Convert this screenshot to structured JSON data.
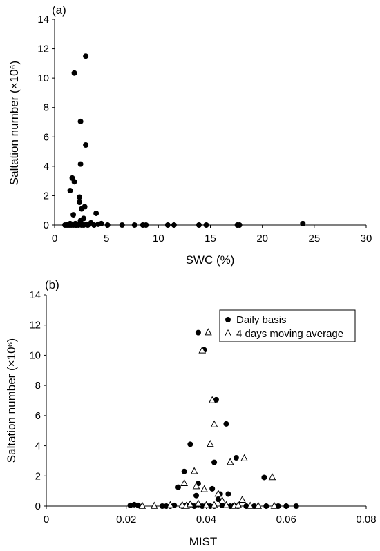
{
  "chart_data": [
    {
      "type": "scatter",
      "panel_label": "(a)",
      "xlabel": "SWC (%)",
      "ylabel": "Saltation number (×10⁶)",
      "xlim": [
        0,
        30
      ],
      "ylim": [
        0,
        14
      ],
      "x_ticks": [
        0,
        5,
        10,
        15,
        20,
        25,
        30
      ],
      "y_ticks": [
        0,
        2,
        4,
        6,
        8,
        10,
        12,
        14
      ],
      "grid": false,
      "legend": "none",
      "series": [
        {
          "marker": "filled-circle",
          "color": "#000000",
          "points": [
            [
              1.0,
              0.0
            ],
            [
              1.2,
              0.0
            ],
            [
              1.3,
              0.05
            ],
            [
              1.4,
              0.0
            ],
            [
              1.5,
              0.1
            ],
            [
              1.5,
              2.35
            ],
            [
              1.6,
              0.0
            ],
            [
              1.7,
              3.2
            ],
            [
              1.7,
              0.05
            ],
            [
              1.8,
              0.7
            ],
            [
              1.8,
              0.0
            ],
            [
              1.9,
              2.95
            ],
            [
              1.9,
              10.35
            ],
            [
              2.0,
              0.1
            ],
            [
              2.0,
              0.0
            ],
            [
              2.1,
              0.0
            ],
            [
              2.2,
              0.05
            ],
            [
              2.3,
              0.0
            ],
            [
              2.4,
              1.9
            ],
            [
              2.4,
              1.55
            ],
            [
              2.4,
              0.1
            ],
            [
              2.5,
              7.05
            ],
            [
              2.5,
              4.15
            ],
            [
              2.5,
              0.3
            ],
            [
              2.6,
              1.1
            ],
            [
              2.6,
              0.0
            ],
            [
              2.7,
              0.05
            ],
            [
              2.8,
              0.45
            ],
            [
              2.8,
              0.0
            ],
            [
              2.9,
              1.25
            ],
            [
              3.0,
              5.45
            ],
            [
              3.0,
              11.5
            ],
            [
              3.1,
              0.05
            ],
            [
              3.2,
              0.0
            ],
            [
              3.5,
              0.15
            ],
            [
              3.8,
              0.0
            ],
            [
              4.0,
              0.8
            ],
            [
              4.2,
              0.05
            ],
            [
              4.5,
              0.1
            ],
            [
              5.1,
              0.0
            ],
            [
              6.5,
              0.0
            ],
            [
              7.7,
              0.0
            ],
            [
              8.5,
              0.0
            ],
            [
              8.8,
              0.0
            ],
            [
              10.9,
              0.0
            ],
            [
              11.5,
              0.0
            ],
            [
              13.9,
              0.0
            ],
            [
              14.6,
              0.0
            ],
            [
              17.6,
              0.0
            ],
            [
              17.8,
              0.0
            ],
            [
              23.9,
              0.1
            ]
          ]
        }
      ]
    },
    {
      "type": "scatter",
      "panel_label": "(b)",
      "xlabel": "MIST",
      "ylabel": "Saltation number (×10⁶)",
      "xlim": [
        0,
        0.08
      ],
      "ylim": [
        0,
        14
      ],
      "x_ticks": [
        0,
        0.02,
        0.04,
        0.06,
        0.08
      ],
      "y_ticks": [
        0,
        2,
        4,
        6,
        8,
        10,
        12,
        14
      ],
      "grid": false,
      "legend": "top-right",
      "series": [
        {
          "name": "Daily basis",
          "marker": "filled-circle",
          "color": "#000000",
          "points": [
            [
              0.021,
              0.05
            ],
            [
              0.022,
              0.1
            ],
            [
              0.023,
              0.05
            ],
            [
              0.029,
              0.0
            ],
            [
              0.03,
              0.0
            ],
            [
              0.031,
              0.0
            ],
            [
              0.032,
              0.05
            ],
            [
              0.033,
              1.25
            ],
            [
              0.034,
              0.0
            ],
            [
              0.0345,
              2.3
            ],
            [
              0.035,
              0.05
            ],
            [
              0.036,
              0.1
            ],
            [
              0.036,
              4.1
            ],
            [
              0.037,
              0.0
            ],
            [
              0.0375,
              0.7
            ],
            [
              0.038,
              0.1
            ],
            [
              0.038,
              1.5
            ],
            [
              0.038,
              11.5
            ],
            [
              0.039,
              0.0
            ],
            [
              0.0395,
              10.35
            ],
            [
              0.04,
              0.05
            ],
            [
              0.04,
              0.05
            ],
            [
              0.041,
              0.0
            ],
            [
              0.0415,
              1.15
            ],
            [
              0.042,
              2.9
            ],
            [
              0.042,
              0.0
            ],
            [
              0.0425,
              7.05
            ],
            [
              0.043,
              0.45
            ],
            [
              0.0435,
              0.8
            ],
            [
              0.044,
              0.05
            ],
            [
              0.045,
              5.45
            ],
            [
              0.0455,
              0.8
            ],
            [
              0.046,
              0.0
            ],
            [
              0.047,
              0.05
            ],
            [
              0.0475,
              3.2
            ],
            [
              0.048,
              0.0
            ],
            [
              0.05,
              0.0
            ],
            [
              0.052,
              0.0
            ],
            [
              0.0545,
              1.9
            ],
            [
              0.055,
              0.0
            ],
            [
              0.058,
              0.0
            ],
            [
              0.06,
              0.0
            ],
            [
              0.0625,
              0.0
            ]
          ]
        },
        {
          "name": "4 days moving average",
          "marker": "open-triangle",
          "color": "#000000",
          "points": [
            [
              0.024,
              0.0
            ],
            [
              0.027,
              0.0
            ],
            [
              0.031,
              0.05
            ],
            [
              0.034,
              0.05
            ],
            [
              0.0345,
              1.5
            ],
            [
              0.035,
              0.0
            ],
            [
              0.036,
              0.1
            ],
            [
              0.037,
              2.3
            ],
            [
              0.0375,
              1.3
            ],
            [
              0.038,
              0.15
            ],
            [
              0.039,
              10.3
            ],
            [
              0.0395,
              1.1
            ],
            [
              0.04,
              0.05
            ],
            [
              0.0405,
              11.5
            ],
            [
              0.041,
              4.1
            ],
            [
              0.0415,
              7.0
            ],
            [
              0.042,
              5.4
            ],
            [
              0.042,
              0.05
            ],
            [
              0.043,
              0.8
            ],
            [
              0.044,
              0.35
            ],
            [
              0.045,
              0.05
            ],
            [
              0.046,
              2.9
            ],
            [
              0.047,
              0.0
            ],
            [
              0.048,
              0.05
            ],
            [
              0.049,
              0.4
            ],
            [
              0.0495,
              3.15
            ],
            [
              0.051,
              0.0
            ],
            [
              0.053,
              0.0
            ],
            [
              0.0565,
              1.9
            ],
            [
              0.057,
              0.0
            ]
          ]
        }
      ]
    }
  ]
}
